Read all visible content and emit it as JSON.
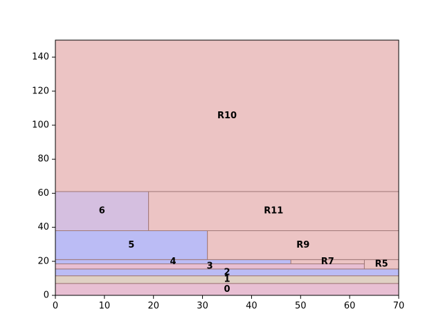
{
  "colors": {
    "red": "#ecc4c4",
    "blue": "#bbbcf5",
    "purple": "#d5bfe0",
    "pink": "#e8bfd3",
    "tan": "#e0d1c4",
    "edge": "#a07878",
    "axis": "#000000"
  },
  "chart_data": {
    "type": "rectangle-packing",
    "title": "",
    "xlabel": "",
    "ylabel": "",
    "xlim": [
      0,
      70
    ],
    "ylim": [
      0,
      150
    ],
    "xticks": [
      0,
      10,
      20,
      30,
      40,
      50,
      60,
      70
    ],
    "yticks": [
      0,
      20,
      40,
      60,
      80,
      100,
      120,
      140
    ],
    "grid": false,
    "legend": "none",
    "rectangles": [
      {
        "label": "0",
        "x0": 0,
        "x1": 70,
        "y0": 0,
        "y1": 7,
        "color": "pink"
      },
      {
        "label": "1",
        "x0": 0,
        "x1": 70,
        "y0": 7,
        "y1": 11.5,
        "color": "tan"
      },
      {
        "label": "2",
        "x0": 0,
        "x1": 70,
        "y0": 11.5,
        "y1": 15.5,
        "color": "blue"
      },
      {
        "label": "3",
        "x0": 0,
        "x1": 63,
        "y0": 15.5,
        "y1": 18.5,
        "color": "pink"
      },
      {
        "label": "R5",
        "x0": 63,
        "x1": 70,
        "y0": 15.5,
        "y1": 21,
        "color": "red"
      },
      {
        "label": "R7",
        "x0": 48,
        "x1": 63,
        "y0": 18.5,
        "y1": 21,
        "color": "red"
      },
      {
        "label": "4",
        "x0": 0,
        "x1": 48,
        "y0": 18.5,
        "y1": 21,
        "color": "blue"
      },
      {
        "label": "5",
        "x0": 0,
        "x1": 31,
        "y0": 21,
        "y1": 38,
        "color": "blue"
      },
      {
        "label": "R9",
        "x0": 31,
        "x1": 70,
        "y0": 21,
        "y1": 38,
        "color": "red"
      },
      {
        "label": "6",
        "x0": 0,
        "x1": 19,
        "y0": 38,
        "y1": 61,
        "color": "purple"
      },
      {
        "label": "R11",
        "x0": 19,
        "x1": 70,
        "y0": 38,
        "y1": 61,
        "color": "red"
      },
      {
        "label": "R10",
        "x0": 0,
        "x1": 70,
        "y0": 61,
        "y1": 150,
        "color": "red"
      }
    ]
  }
}
